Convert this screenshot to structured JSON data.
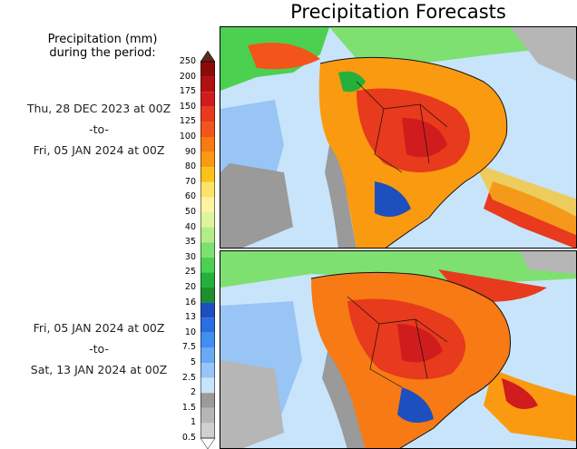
{
  "title": "Precipitation Forecasts",
  "legend": {
    "heading_line1": "Precipitation (mm)",
    "heading_line2": "during the period:",
    "ticks": [
      "250",
      "200",
      "175",
      "150",
      "125",
      "100",
      "90",
      "80",
      "70",
      "60",
      "50",
      "40",
      "35",
      "30",
      "25",
      "20",
      "16",
      "13",
      "10",
      "7.5",
      "5",
      "2.5",
      "2",
      "1.5",
      "1",
      "0.5"
    ],
    "colors": [
      "#5a2a1c",
      "#8b0a0a",
      "#b01010",
      "#d01c1c",
      "#e83a1c",
      "#f2541a",
      "#f77a14",
      "#f99a10",
      "#fbc21a",
      "#fde26a",
      "#fff2a0",
      "#dcf4a0",
      "#b4ec88",
      "#7ee070",
      "#4cd050",
      "#24b03a",
      "#1e8e2e",
      "#1e4fbe",
      "#2a6ee0",
      "#3f8ef0",
      "#68aaf4",
      "#98c4f6",
      "#c8e4fa",
      "#9a9a9a",
      "#b6b6b6",
      "#d0d0d0",
      "#e6e6e6"
    ]
  },
  "periods": [
    {
      "from": "Thu, 28 DEC 2023 at 00Z",
      "sep": "-to-",
      "to": "Fri, 05 JAN 2024 at 00Z"
    },
    {
      "from": "Fri, 05 JAN 2024 at 00Z",
      "sep": "-to-",
      "to": "Sat, 13 JAN 2024 at 00Z"
    }
  ]
}
